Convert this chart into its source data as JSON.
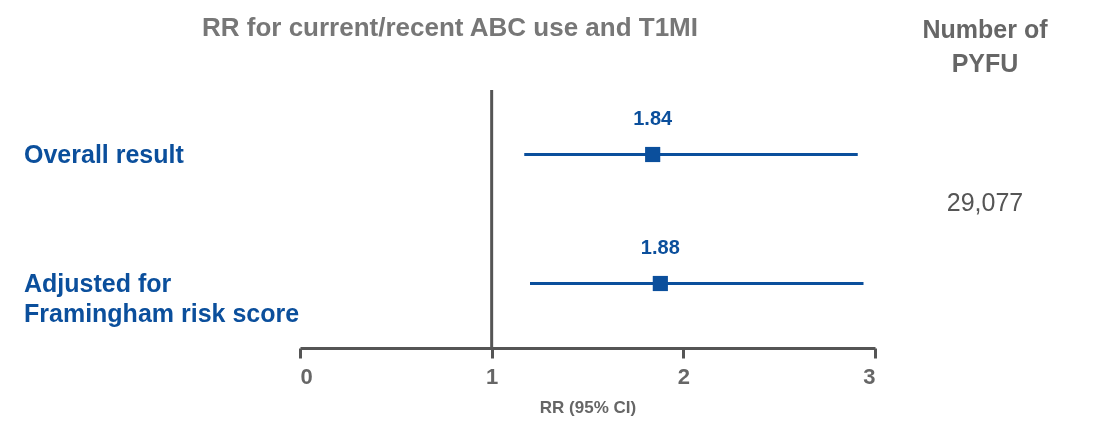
{
  "chart_data": {
    "type": "scatter",
    "orientation": "horizontal",
    "title": "RR for current/recent ABC use and T1MI",
    "xlabel": "RR (95% CI)",
    "categories": [
      "Overall result",
      "Adjusted for Framingham risk score"
    ],
    "values": [
      1.84,
      1.88
    ],
    "errors": [
      [
        1.17,
        2.91
      ],
      [
        1.2,
        2.94
      ]
    ],
    "color": "#0b4f9c",
    "marker": "square",
    "data_labels": true,
    "xlim": [
      0,
      3
    ],
    "xticks": [
      0,
      1,
      2,
      3
    ],
    "ref_lines": [
      {
        "axis": "x",
        "value": 1,
        "color": "#555555"
      }
    ],
    "annotations": [
      "Number of PYFU",
      "29,077"
    ]
  }
}
